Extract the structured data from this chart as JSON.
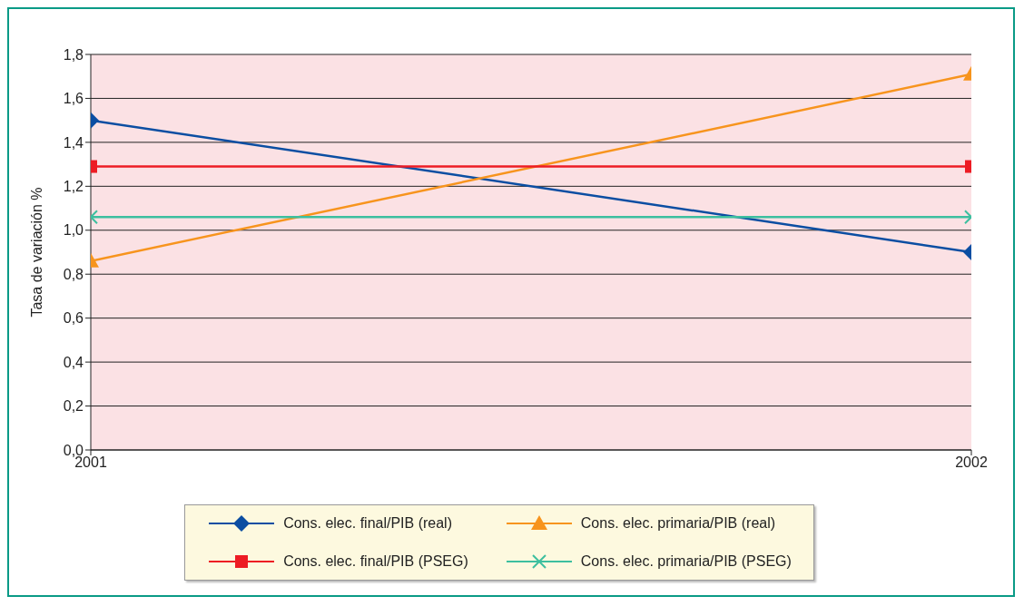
{
  "chart_data": {
    "type": "line",
    "ylabel": "Tasa de variación %",
    "x": [
      2001,
      2002
    ],
    "xlim": [
      2001,
      2002
    ],
    "xticks": [
      2001,
      2002
    ],
    "ylim": [
      0,
      1.8
    ],
    "yticks": [
      {
        "value": 0,
        "label": "0,0"
      },
      {
        "value": 0.2,
        "label": "0,2"
      },
      {
        "value": 0.4,
        "label": "0,4"
      },
      {
        "value": 0.6,
        "label": "0,6"
      },
      {
        "value": 0.8,
        "label": "0,8"
      },
      {
        "value": 1.0,
        "label": "1,0"
      },
      {
        "value": 1.2,
        "label": "1,2"
      },
      {
        "value": 1.4,
        "label": "1,4"
      },
      {
        "value": 1.6,
        "label": "1,6"
      },
      {
        "value": 1.8,
        "label": "1,8"
      }
    ],
    "grid": "y",
    "legend": "bottom",
    "line_style": "solid",
    "series": [
      {
        "name": "Cons. elec. final/PIB (real)",
        "color": "#0b4ea2",
        "marker": "diamond",
        "values": [
          1.5,
          0.9
        ]
      },
      {
        "name": "Cons. elec. primaria/PIB (real)",
        "color": "#f7941d",
        "marker": "triangle",
        "values": [
          0.86,
          1.71
        ]
      },
      {
        "name": "Cons. elec. final/PIB (PSEG)",
        "color": "#ed1c24",
        "marker": "square",
        "values": [
          1.29,
          1.29
        ]
      },
      {
        "name": "Cons. elec. primaria/PIB (PSEG)",
        "color": "#3dbf9f",
        "marker": "cross",
        "values": [
          1.06,
          1.06
        ]
      }
    ]
  }
}
